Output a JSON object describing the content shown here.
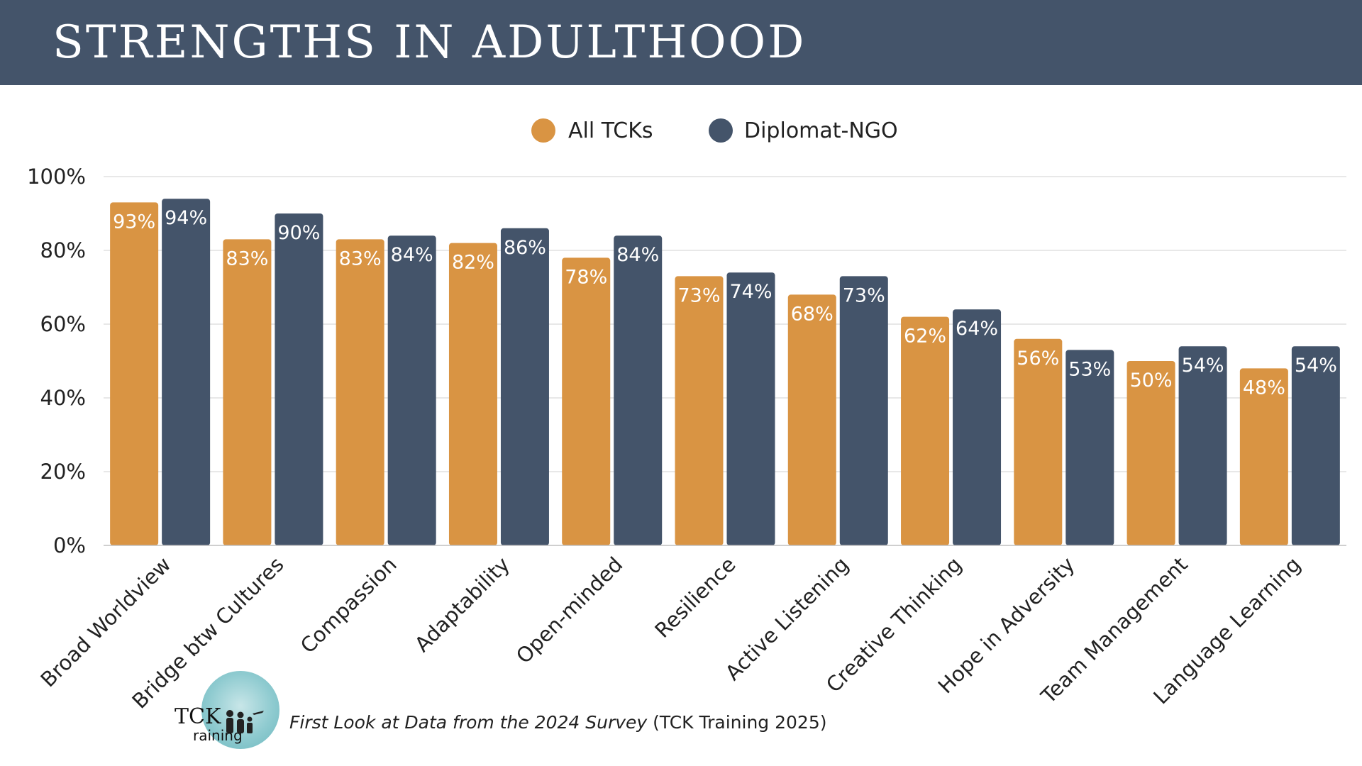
{
  "header": {
    "title": "STRENGTHS IN ADULTHOOD"
  },
  "footer": {
    "source_italic": "First Look at Data from the 2024 Survey",
    "source_rest": " (TCK Training 2025)"
  },
  "logo": {
    "line1": "TCK",
    "line2": "raining"
  },
  "colors": {
    "header_bg": "#44546a",
    "all_tcks": "#d99443",
    "diplomat_ngo": "#44546a",
    "grid": "#d9d9d9"
  },
  "chart_data": {
    "type": "bar",
    "title": "",
    "xlabel": "",
    "ylabel": "",
    "ylim": [
      0,
      100
    ],
    "yticks": [
      "0%",
      "20%",
      "40%",
      "60%",
      "80%",
      "100%"
    ],
    "grid": true,
    "legend_position": "top-center",
    "categories": [
      "Broad Worldview",
      "Bridge btw Cultures",
      "Compassion",
      "Adaptability",
      "Open-minded",
      "Resilience",
      "Active Listening",
      "Creative Thinking",
      "Hope in Adversity",
      "Team Management",
      "Language Learning"
    ],
    "series": [
      {
        "name": "All TCKs",
        "color": "#d99443",
        "values": [
          93,
          83,
          83,
          82,
          78,
          73,
          68,
          62,
          56,
          50,
          48
        ],
        "labels": [
          "93%",
          "83%",
          "83%",
          "82%",
          "78%",
          "73%",
          "68%",
          "62%",
          "56%",
          "50%",
          "48%"
        ]
      },
      {
        "name": "Diplomat-NGO",
        "color": "#44546a",
        "values": [
          94,
          90,
          84,
          86,
          84,
          74,
          73,
          64,
          53,
          54,
          54
        ],
        "labels": [
          "94%",
          "90%",
          "84%",
          "86%",
          "84%",
          "74%",
          "73%",
          "64%",
          "53%",
          "54%",
          "54%"
        ]
      }
    ]
  }
}
